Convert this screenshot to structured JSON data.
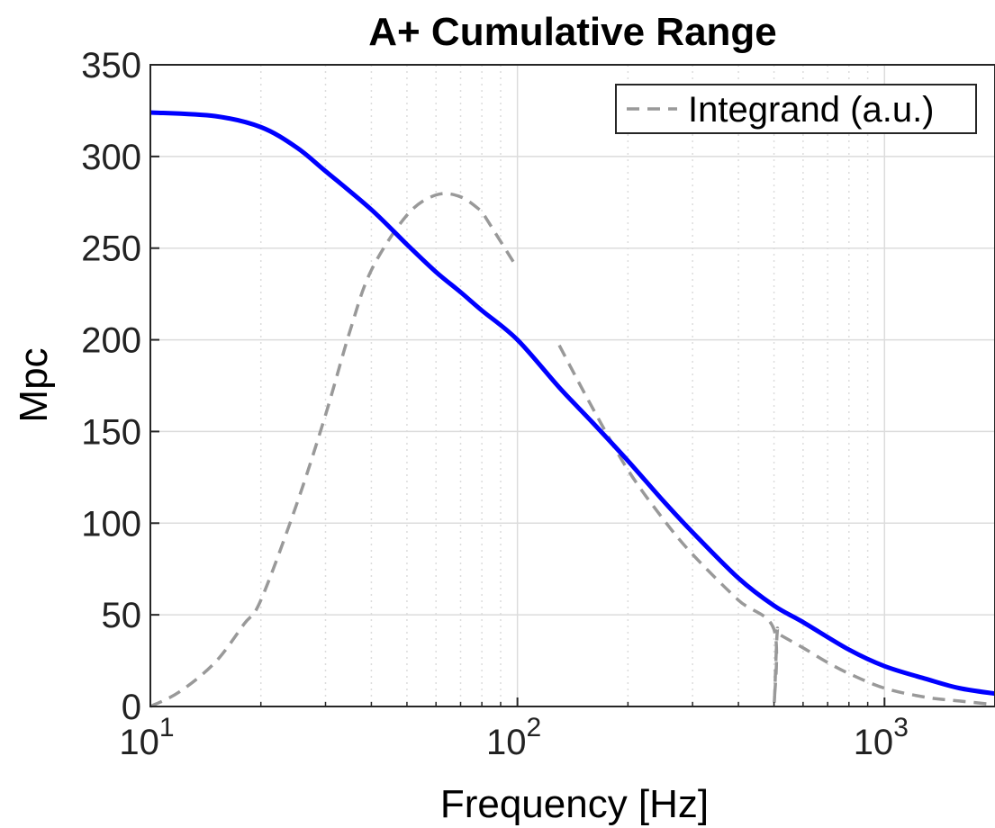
{
  "chart_data": {
    "type": "line",
    "title": "A+ Cumulative Range",
    "xlabel": "Frequency [Hz]",
    "ylabel": "Mpc",
    "xscale": "log",
    "xlim": [
      10,
      2000
    ],
    "ylim": [
      0,
      350
    ],
    "yticks": [
      0,
      50,
      100,
      150,
      200,
      250,
      300,
      350
    ],
    "xticks": [
      {
        "value": 10,
        "base": "10",
        "exp": "1"
      },
      {
        "value": 100,
        "base": "10",
        "exp": "2"
      },
      {
        "value": 1000,
        "base": "10",
        "exp": "3"
      }
    ],
    "grid": true,
    "legend_position": "top-right",
    "series": [
      {
        "role": "cumulative-range",
        "color": "#0000ff",
        "style": "solid",
        "x": [
          10,
          15,
          20,
          25,
          30,
          40,
          50,
          60,
          70,
          80,
          100,
          130,
          160,
          200,
          250,
          300,
          400,
          500,
          600,
          800,
          1000,
          1300,
          1600,
          2000
        ],
        "y": [
          324,
          322,
          316,
          305,
          292,
          271,
          252,
          237,
          226,
          216,
          200,
          174,
          155,
          134,
          112,
          95,
          70,
          55,
          46,
          31,
          22,
          15,
          10,
          7
        ]
      },
      {
        "name": "Integrand (a.u.)",
        "color": "#999999",
        "style": "dashed",
        "x": [
          10,
          12,
          15,
          18,
          20,
          25,
          30,
          35,
          40,
          50,
          60,
          70,
          80,
          100,
          130,
          160,
          200,
          250,
          300,
          400,
          500,
          500.5,
          510,
          520,
          600,
          700,
          800,
          1000,
          1300,
          1600,
          2000
        ],
        "y": [
          0,
          8,
          24,
          45,
          58,
          110,
          159,
          205,
          238,
          268,
          279,
          278,
          270,
          239,
          197,
          163,
          129,
          102,
          83,
          58,
          42,
          2,
          40,
          39,
          32,
          24,
          18,
          10,
          5,
          3,
          1
        ]
      }
    ]
  },
  "colors": {
    "range_line": "#0000ff",
    "integrand_line": "#999999",
    "grid": "#dcdcdc"
  }
}
